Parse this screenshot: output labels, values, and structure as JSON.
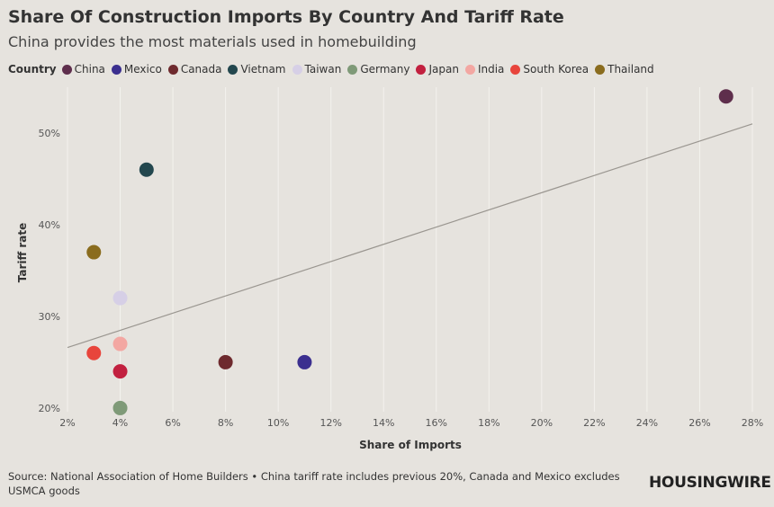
{
  "header": {
    "title": "Share Of Construction Imports By Country And Tariff Rate",
    "subtitle": "China provides the most materials used in homebuilding"
  },
  "legend": {
    "title": "Country",
    "items": [
      {
        "label": "China",
        "color": "#5e2e4c"
      },
      {
        "label": "Mexico",
        "color": "#3b2f8f"
      },
      {
        "label": "Canada",
        "color": "#6e2a2e"
      },
      {
        "label": "Vietnam",
        "color": "#23474e"
      },
      {
        "label": "Taiwan",
        "color": "#d6cfe6"
      },
      {
        "label": "Germany",
        "color": "#7f9a78"
      },
      {
        "label": "Japan",
        "color": "#c2203f"
      },
      {
        "label": "India",
        "color": "#f3a7a2"
      },
      {
        "label": "South Korea",
        "color": "#e8453c"
      },
      {
        "label": "Thailand",
        "color": "#8a6c1e"
      }
    ]
  },
  "chart_data": {
    "type": "scatter",
    "xlabel": "Share of Imports",
    "ylabel": "Tariff rate",
    "xlim": [
      2,
      28
    ],
    "ylim": [
      19.6,
      55
    ],
    "x_ticks": [
      2,
      4,
      6,
      8,
      10,
      12,
      14,
      16,
      18,
      20,
      22,
      24,
      26,
      28
    ],
    "x_tick_labels": [
      "2%",
      "4%",
      "6%",
      "8%",
      "10%",
      "12%",
      "14%",
      "16%",
      "18%",
      "20%",
      "22%",
      "24%",
      "26%",
      "28%"
    ],
    "y_ticks": [
      20,
      30,
      40,
      50
    ],
    "y_tick_labels": [
      "20%",
      "30%",
      "40%",
      "50%"
    ],
    "points": [
      {
        "country": "China",
        "x": 27,
        "y": 54,
        "color": "#5e2e4c"
      },
      {
        "country": "Mexico",
        "x": 11,
        "y": 25,
        "color": "#3b2f8f"
      },
      {
        "country": "Canada",
        "x": 8,
        "y": 25,
        "color": "#6e2a2e"
      },
      {
        "country": "Vietnam",
        "x": 5,
        "y": 46,
        "color": "#23474e"
      },
      {
        "country": "Taiwan",
        "x": 4,
        "y": 32,
        "color": "#d6cfe6"
      },
      {
        "country": "Germany",
        "x": 4,
        "y": 20,
        "color": "#7f9a78"
      },
      {
        "country": "Japan",
        "x": 4,
        "y": 24,
        "color": "#c2203f"
      },
      {
        "country": "India",
        "x": 4,
        "y": 27,
        "color": "#f3a7a2"
      },
      {
        "country": "South Korea",
        "x": 3,
        "y": 26,
        "color": "#e8453c"
      },
      {
        "country": "Thailand",
        "x": 3,
        "y": 37,
        "color": "#8a6c1e"
      }
    ],
    "trendline": {
      "x": [
        2,
        28
      ],
      "y": [
        26.6,
        51
      ]
    },
    "grid": "vertical"
  },
  "footer": {
    "source": "Source: National Association of Home Builders • China tariff rate includes previous 20%, Canada and Mexico excludes USMCA goods",
    "brand": "HOUSINGWIRE"
  }
}
